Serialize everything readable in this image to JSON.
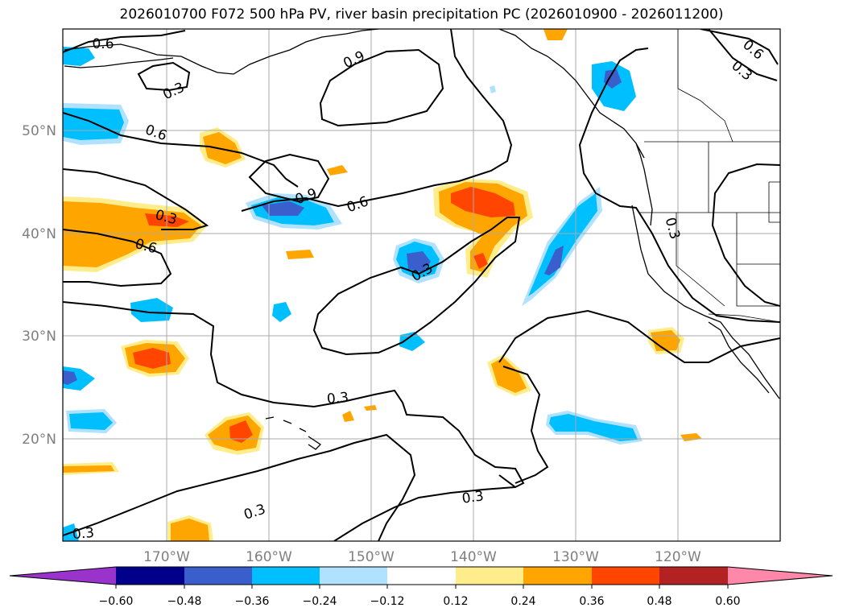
{
  "title": "2026010700 F072 500 hPa PV, river basin precipitation PC (2026010900 - 2026011200)",
  "map": {
    "lon_ticks": [
      "170°W",
      "160°W",
      "150°W",
      "140°W",
      "130°W",
      "120°W"
    ],
    "lat_ticks": [
      "50°N",
      "40°N",
      "30°N",
      "20°N"
    ],
    "contour_labels": [
      "0.6",
      "0.3",
      "0.9",
      "0.6",
      "0.3",
      "0.6",
      "0.3",
      "0.9",
      "0.6",
      "0.3",
      "0.3",
      "0.3",
      "0.3",
      "0.3",
      "0.6",
      "0.3"
    ],
    "colors": {
      "c1": "#9933cc",
      "c2": "#00008b",
      "c3": "#3a5fcd",
      "c4": "#00bfff",
      "c5": "#b0e2ff",
      "c6": "#ffffff",
      "c7": "#ffec8b",
      "c8": "#ffa500",
      "c9": "#ff4500",
      "c10": "#b22222",
      "c11": "#ff88aa"
    }
  },
  "colorbar": {
    "ticks": [
      "−0.60",
      "−0.48",
      "−0.36",
      "−0.24",
      "−0.12",
      "0.12",
      "0.24",
      "0.36",
      "0.48",
      "0.60"
    ]
  }
}
